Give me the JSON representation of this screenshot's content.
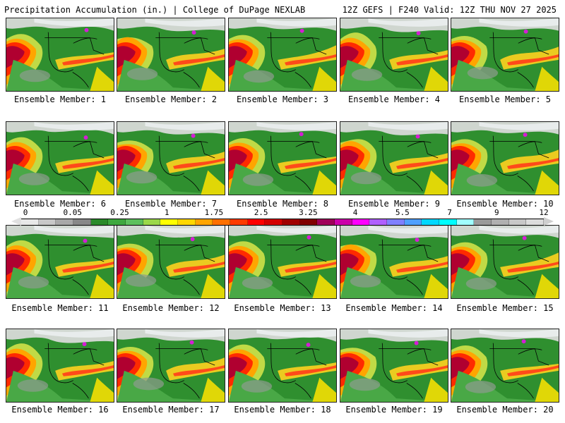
{
  "header": {
    "left": "Precipitation Accumulation (in.) | College of DuPage NEXLAB",
    "right": "12Z GEFS | F240 Valid: 12Z THU NOV 27 2025"
  },
  "members": [
    {
      "label": "Ensemble Member: 1"
    },
    {
      "label": "Ensemble Member: 2"
    },
    {
      "label": "Ensemble Member: 3"
    },
    {
      "label": "Ensemble Member: 4"
    },
    {
      "label": "Ensemble Member: 5"
    },
    {
      "label": "Ensemble Member: 6"
    },
    {
      "label": "Ensemble Member: 7"
    },
    {
      "label": "Ensemble Member: 8"
    },
    {
      "label": "Ensemble Member: 9"
    },
    {
      "label": "Ensemble Member: 10"
    },
    {
      "label": "Ensemble Member: 11"
    },
    {
      "label": "Ensemble Member: 12"
    },
    {
      "label": "Ensemble Member: 13"
    },
    {
      "label": "Ensemble Member: 14"
    },
    {
      "label": "Ensemble Member: 15"
    },
    {
      "label": "Ensemble Member: 16"
    },
    {
      "label": "Ensemble Member: 17"
    },
    {
      "label": "Ensemble Member: 18"
    },
    {
      "label": "Ensemble Member: 19"
    },
    {
      "label": "Ensemble Member: 20"
    }
  ],
  "colorbar": {
    "ticks": [
      "0",
      "0.05",
      "0.25",
      "1",
      "1.75",
      "2.5",
      "3.25",
      "4",
      "5.5",
      "7",
      "9",
      "12"
    ],
    "colors": [
      "#e8e8e8",
      "#c8c8c8",
      "#a8a8a8",
      "#888888",
      "#2a8a2a",
      "#3ea83e",
      "#5cc05c",
      "#9bd84a",
      "#ffff00",
      "#ffd700",
      "#ffa500",
      "#ff7000",
      "#ff3b00",
      "#ff0000",
      "#d40000",
      "#a00000",
      "#800000",
      "#a0005a",
      "#cc00aa",
      "#ff00ff",
      "#b060ff",
      "#8080ff",
      "#4fa0ff",
      "#00d8ff",
      "#00ffff",
      "#a0ffff",
      "#9a9a9a",
      "#b0b0b0",
      "#c8c8c8",
      "#dcdcdc"
    ]
  }
}
